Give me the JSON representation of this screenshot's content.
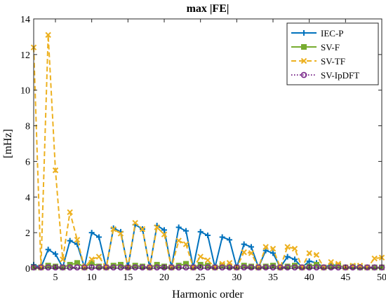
{
  "chart_data": {
    "type": "line",
    "title": "max |FE|",
    "xlabel": "Harmonic order",
    "ylabel": "[mHz]",
    "xlim": [
      2,
      50
    ],
    "ylim": [
      0,
      14
    ],
    "xticks": [
      5,
      10,
      15,
      20,
      25,
      30,
      35,
      40,
      45,
      50
    ],
    "yticks": [
      0,
      2,
      4,
      6,
      8,
      10,
      12,
      14
    ],
    "grid": false,
    "legend_position": "top-right",
    "x": [
      2,
      3,
      4,
      5,
      6,
      7,
      8,
      9,
      10,
      11,
      12,
      13,
      14,
      15,
      16,
      17,
      18,
      19,
      20,
      21,
      22,
      23,
      24,
      25,
      26,
      27,
      28,
      29,
      30,
      31,
      32,
      33,
      34,
      35,
      36,
      37,
      38,
      39,
      40,
      41,
      42,
      43,
      44,
      45,
      46,
      47,
      48,
      49,
      50
    ],
    "series": [
      {
        "name": "IEC-P",
        "color": "#0072BD",
        "line": "solid",
        "marker": "plus",
        "values": [
          0.2,
          0.05,
          1.05,
          0.8,
          0.05,
          1.55,
          1.35,
          0.05,
          2.0,
          1.75,
          0.05,
          2.25,
          2.05,
          0.05,
          2.45,
          2.2,
          0.05,
          2.4,
          2.15,
          0.05,
          2.3,
          2.1,
          0.05,
          2.05,
          1.85,
          0.05,
          1.75,
          1.6,
          0.05,
          1.35,
          1.2,
          0.05,
          1.0,
          0.85,
          0.05,
          0.65,
          0.5,
          0.05,
          0.4,
          0.3,
          0.05,
          0.2,
          0.15,
          0.05,
          0.1,
          0.08,
          0.05,
          0.05,
          0.05
        ]
      },
      {
        "name": "SV-F",
        "color": "#77AC30",
        "line": "solid",
        "marker": "square",
        "values": [
          0.05,
          0.05,
          0.15,
          0.1,
          0.05,
          0.2,
          0.3,
          0.05,
          0.3,
          0.1,
          0.05,
          0.15,
          0.2,
          0.05,
          0.15,
          0.1,
          0.05,
          0.2,
          0.1,
          0.05,
          0.15,
          0.25,
          0.05,
          0.2,
          0.15,
          0.05,
          0.15,
          0.1,
          0.05,
          0.15,
          0.1,
          0.05,
          0.1,
          0.15,
          0.05,
          0.1,
          0.15,
          0.05,
          0.1,
          0.2,
          0.05,
          0.1,
          0.15,
          0.05,
          0.1,
          0.05,
          0.05,
          0.05,
          0.05
        ]
      },
      {
        "name": "SV-TF",
        "color": "#EDB120",
        "line": "dashed",
        "marker": "x",
        "values": [
          12.4,
          0.05,
          13.1,
          5.5,
          0.5,
          3.15,
          1.6,
          0.05,
          0.5,
          0.65,
          0.05,
          2.2,
          1.95,
          0.05,
          2.55,
          2.2,
          0.05,
          2.3,
          1.9,
          0.05,
          1.55,
          1.35,
          0.05,
          0.65,
          0.45,
          0.05,
          0.25,
          0.3,
          0.05,
          0.9,
          0.85,
          0.05,
          1.2,
          1.1,
          0.05,
          1.2,
          1.1,
          0.05,
          0.85,
          0.75,
          0.05,
          0.35,
          0.25,
          0.05,
          0.15,
          0.15,
          0.05,
          0.55,
          0.6
        ]
      },
      {
        "name": "SV-IpDFT",
        "color": "#7E2F8E",
        "line": "dotted",
        "marker": "circle",
        "values": [
          0.05,
          0.05,
          0.05,
          0.05,
          0.05,
          0.05,
          0.05,
          0.05,
          0.05,
          0.05,
          0.05,
          0.05,
          0.05,
          0.05,
          0.05,
          0.05,
          0.05,
          0.05,
          0.05,
          0.05,
          0.05,
          0.05,
          0.05,
          0.05,
          0.05,
          0.05,
          0.05,
          0.05,
          0.05,
          0.05,
          0.05,
          0.05,
          0.05,
          0.05,
          0.05,
          0.05,
          0.05,
          0.05,
          0.05,
          0.05,
          0.05,
          0.05,
          0.05,
          0.05,
          0.05,
          0.05,
          0.05,
          0.05,
          0.05
        ]
      }
    ]
  }
}
